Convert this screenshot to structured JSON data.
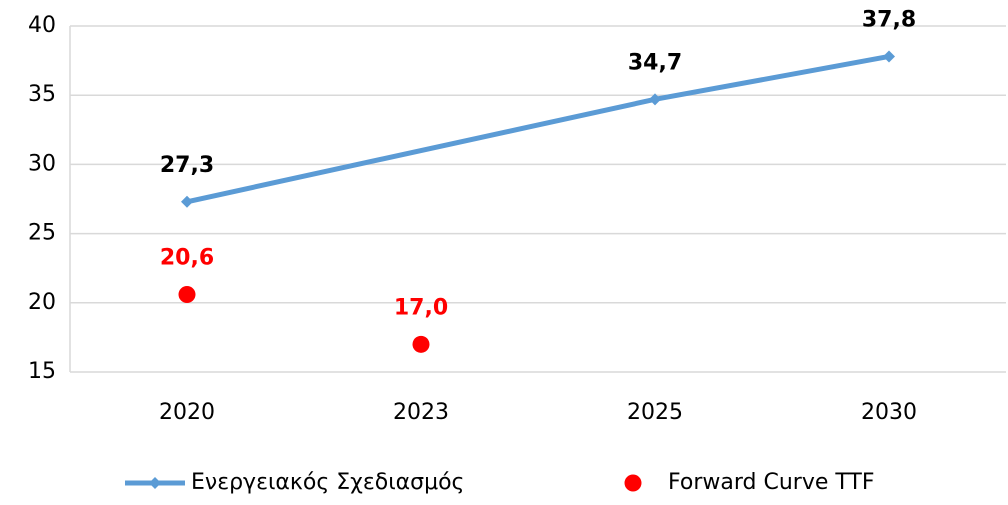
{
  "chart_data": {
    "type": "line",
    "categories": [
      "2020",
      "2023",
      "2025",
      "2030"
    ],
    "series": [
      {
        "name": "Ενεργειακός Σχεδιασμός",
        "color": "#5b9bd5",
        "values": [
          27.3,
          null,
          34.7,
          37.8
        ],
        "value_labels": [
          "27,3",
          null,
          "34,7",
          "37,8"
        ],
        "marker": "diamond",
        "line": true,
        "label_color": "#000000"
      },
      {
        "name": "Forward Curve TTF",
        "color": "#ff0000",
        "values": [
          20.6,
          17.0,
          null,
          null
        ],
        "value_labels": [
          "20,6",
          "17,0",
          null,
          null
        ],
        "marker": "circle",
        "line": false,
        "label_color": "#ff0000"
      }
    ],
    "ylim": [
      15,
      40
    ],
    "yticks": [
      15,
      20,
      25,
      30,
      35,
      40
    ],
    "grid": true,
    "span_gaps": true,
    "legend": "bottom"
  }
}
